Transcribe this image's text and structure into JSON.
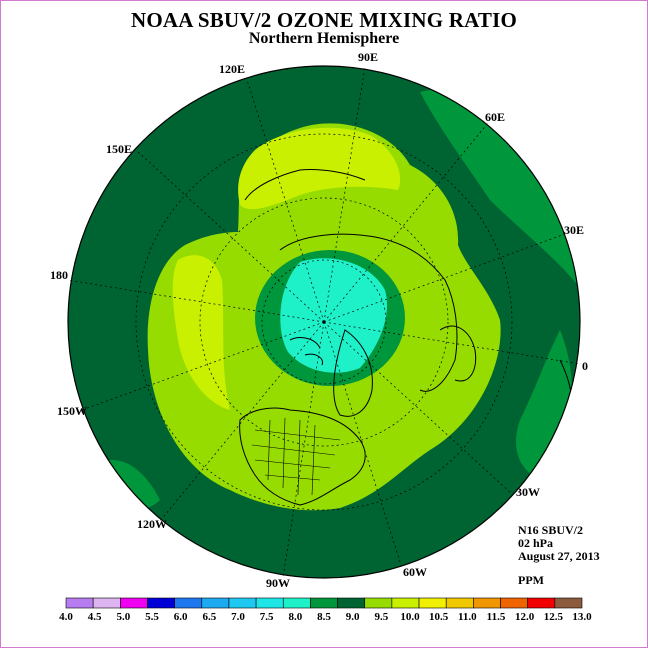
{
  "title": "NOAA SBUV/2 OZONE MIXING RATIO",
  "subtitle": "Northern Hemisphere",
  "info": {
    "satellite": "N16 SBUV/2",
    "level": "02 hPa",
    "date": "August 27, 2013",
    "units": "PPM"
  },
  "longitude_labels": [
    "90E",
    "120E",
    "60E",
    "150E",
    "30E",
    "180",
    "0",
    "150W",
    "30W",
    "120W",
    "60W",
    "90W"
  ],
  "colorbar": {
    "ticks": [
      "4.0",
      "4.5",
      "5.0",
      "5.5",
      "6.0",
      "6.5",
      "7.0",
      "7.5",
      "8.0",
      "8.5",
      "9.0",
      "9.5",
      "10.0",
      "10.5",
      "11.0",
      "11.5",
      "12.0",
      "12.5",
      "13.0"
    ],
    "colors": [
      "#b77df0",
      "#dcb4f0",
      "#f000f0",
      "#0000d6",
      "#1e78f0",
      "#1eaaf0",
      "#1ec8f0",
      "#1ee6e6",
      "#1ef0c8",
      "#00963c",
      "#006432",
      "#96dc00",
      "#c8f000",
      "#f0f000",
      "#f0c800",
      "#f09600",
      "#f06400",
      "#f00000",
      "#8c5a3c"
    ]
  },
  "fill_colors": {
    "ocean": "#006432",
    "band_8_5": "#00963c",
    "band_9_5": "#96dc00",
    "band_10": "#c8f000",
    "polar_7_5": "#1ef0c8"
  }
}
